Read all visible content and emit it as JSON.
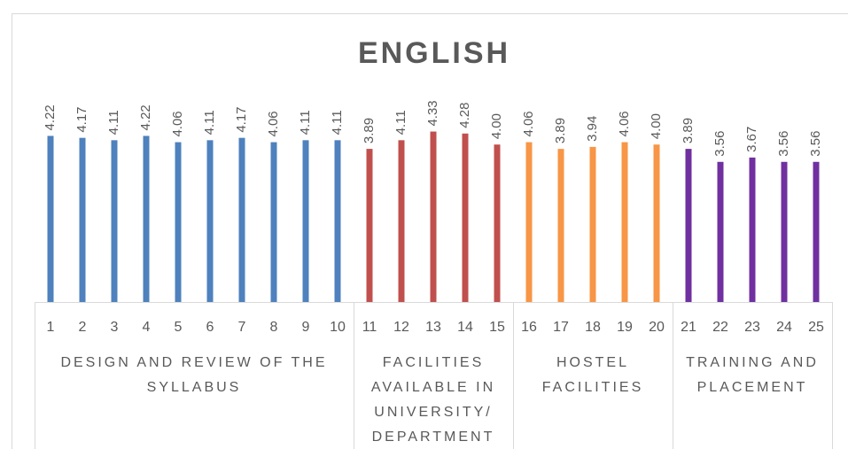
{
  "chart_data": {
    "type": "bar",
    "title": "ENGLISH",
    "categories": [
      "1",
      "2",
      "3",
      "4",
      "5",
      "6",
      "7",
      "8",
      "9",
      "10",
      "11",
      "12",
      "13",
      "14",
      "15",
      "16",
      "17",
      "18",
      "19",
      "20",
      "21",
      "22",
      "23",
      "24",
      "25"
    ],
    "ylim": [
      0,
      4.5
    ],
    "series": [
      {
        "name": "DESIGN AND REVIEW OF THE SYLLABUS",
        "color": "#4e81bd",
        "values": [
          4.22,
          4.17,
          4.11,
          4.22,
          4.06,
          4.11,
          4.17,
          4.06,
          4.11,
          4.11,
          null,
          null,
          null,
          null,
          null,
          null,
          null,
          null,
          null,
          null,
          null,
          null,
          null,
          null,
          null
        ],
        "value_labels": [
          "4.22",
          "4.17",
          "4.11",
          "4.22",
          "4.06",
          "4.11",
          "4.17",
          "4.06",
          "4.11",
          "4.11",
          null,
          null,
          null,
          null,
          null,
          null,
          null,
          null,
          null,
          null,
          null,
          null,
          null,
          null,
          null
        ]
      },
      {
        "name": "FACILITIES AVAILABLE IN UNIVERSITY/ DEPARTMENT",
        "color": "#c0504d",
        "values": [
          null,
          null,
          null,
          null,
          null,
          null,
          null,
          null,
          null,
          null,
          3.89,
          4.11,
          4.33,
          4.28,
          4.0,
          null,
          null,
          null,
          null,
          null,
          null,
          null,
          null,
          null,
          null
        ],
        "value_labels": [
          null,
          null,
          null,
          null,
          null,
          null,
          null,
          null,
          null,
          null,
          "3.89",
          "4.11",
          "4.33",
          "4.28",
          "4.00",
          null,
          null,
          null,
          null,
          null,
          null,
          null,
          null,
          null,
          null
        ]
      },
      {
        "name": "HOSTEL FACILITIES",
        "color": "#f79646",
        "values": [
          null,
          null,
          null,
          null,
          null,
          null,
          null,
          null,
          null,
          null,
          null,
          null,
          null,
          null,
          null,
          4.06,
          3.89,
          3.94,
          4.06,
          4.0,
          null,
          null,
          null,
          null,
          null
        ],
        "value_labels": [
          null,
          null,
          null,
          null,
          null,
          null,
          null,
          null,
          null,
          null,
          null,
          null,
          null,
          null,
          null,
          "4.06",
          "3.89",
          "3.94",
          "4.06",
          "4.00",
          null,
          null,
          null,
          null,
          null
        ]
      },
      {
        "name": "TRAINING AND PLACEMENT",
        "color": "#7030a0",
        "values": [
          null,
          null,
          null,
          null,
          null,
          null,
          null,
          null,
          null,
          null,
          null,
          null,
          null,
          null,
          null,
          null,
          null,
          null,
          null,
          null,
          3.89,
          3.56,
          3.67,
          3.56,
          3.56
        ],
        "value_labels": [
          null,
          null,
          null,
          null,
          null,
          null,
          null,
          null,
          null,
          null,
          null,
          null,
          null,
          null,
          null,
          null,
          null,
          null,
          null,
          null,
          "3.89",
          "3.56",
          "3.67",
          "3.56",
          "3.56"
        ]
      }
    ]
  }
}
